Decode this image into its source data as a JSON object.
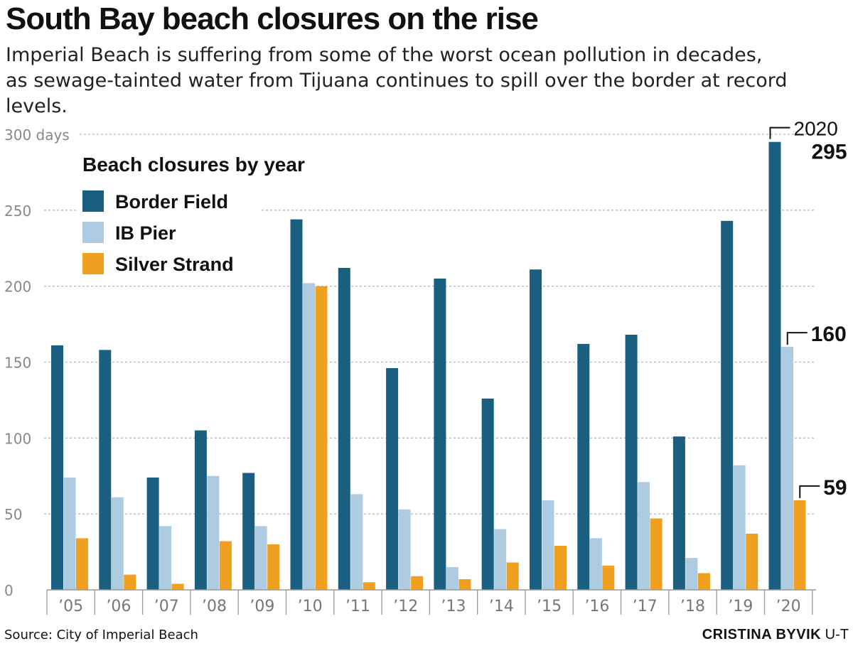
{
  "header": {
    "title": "South Bay beach closures on the rise",
    "subtitle": "Imperial Beach is suffering from some of the worst ocean pollution in decades, as sewage-tainted water from Tijuana continues to spill over the border at record levels."
  },
  "footer": {
    "source": "Source: City of Imperial Beach",
    "credit_name": "CRISTINA BYVIK",
    "credit_org": "U-T"
  },
  "chart_data": {
    "type": "bar",
    "title": "Beach closures by year",
    "categories": [
      "’05",
      "’06",
      "’07",
      "’08",
      "’09",
      "’10",
      "’11",
      "’12",
      "’13",
      "’14",
      "’15",
      "’16",
      "’17",
      "’18",
      "’19",
      "’20"
    ],
    "series": [
      {
        "name": "Border Field",
        "color": "#1a5f80",
        "values": [
          161,
          158,
          74,
          105,
          77,
          244,
          212,
          146,
          205,
          126,
          211,
          162,
          168,
          101,
          243,
          295
        ]
      },
      {
        "name": "IB Pier",
        "color": "#adcce1",
        "values": [
          74,
          61,
          42,
          75,
          42,
          202,
          63,
          53,
          15,
          40,
          59,
          34,
          71,
          21,
          82,
          160
        ]
      },
      {
        "name": "Silver Strand",
        "color": "#f0a020",
        "values": [
          34,
          10,
          4,
          32,
          30,
          200,
          5,
          9,
          7,
          18,
          29,
          16,
          47,
          11,
          37,
          59
        ]
      }
    ],
    "ylim": [
      0,
      300
    ],
    "yticks": [
      0,
      50,
      100,
      150,
      200,
      250,
      300
    ],
    "ytick_labels": [
      "0",
      "50",
      "100",
      "150",
      "200",
      "250",
      "300 days"
    ],
    "grid": true,
    "legend_position": "top-left",
    "annotations": [
      {
        "text": "2020",
        "series": 0,
        "category": 15
      },
      {
        "text": "295",
        "series": 0,
        "category": 15
      },
      {
        "text": "160",
        "series": 1,
        "category": 15
      },
      {
        "text": "59",
        "series": 2,
        "category": 15
      }
    ]
  }
}
